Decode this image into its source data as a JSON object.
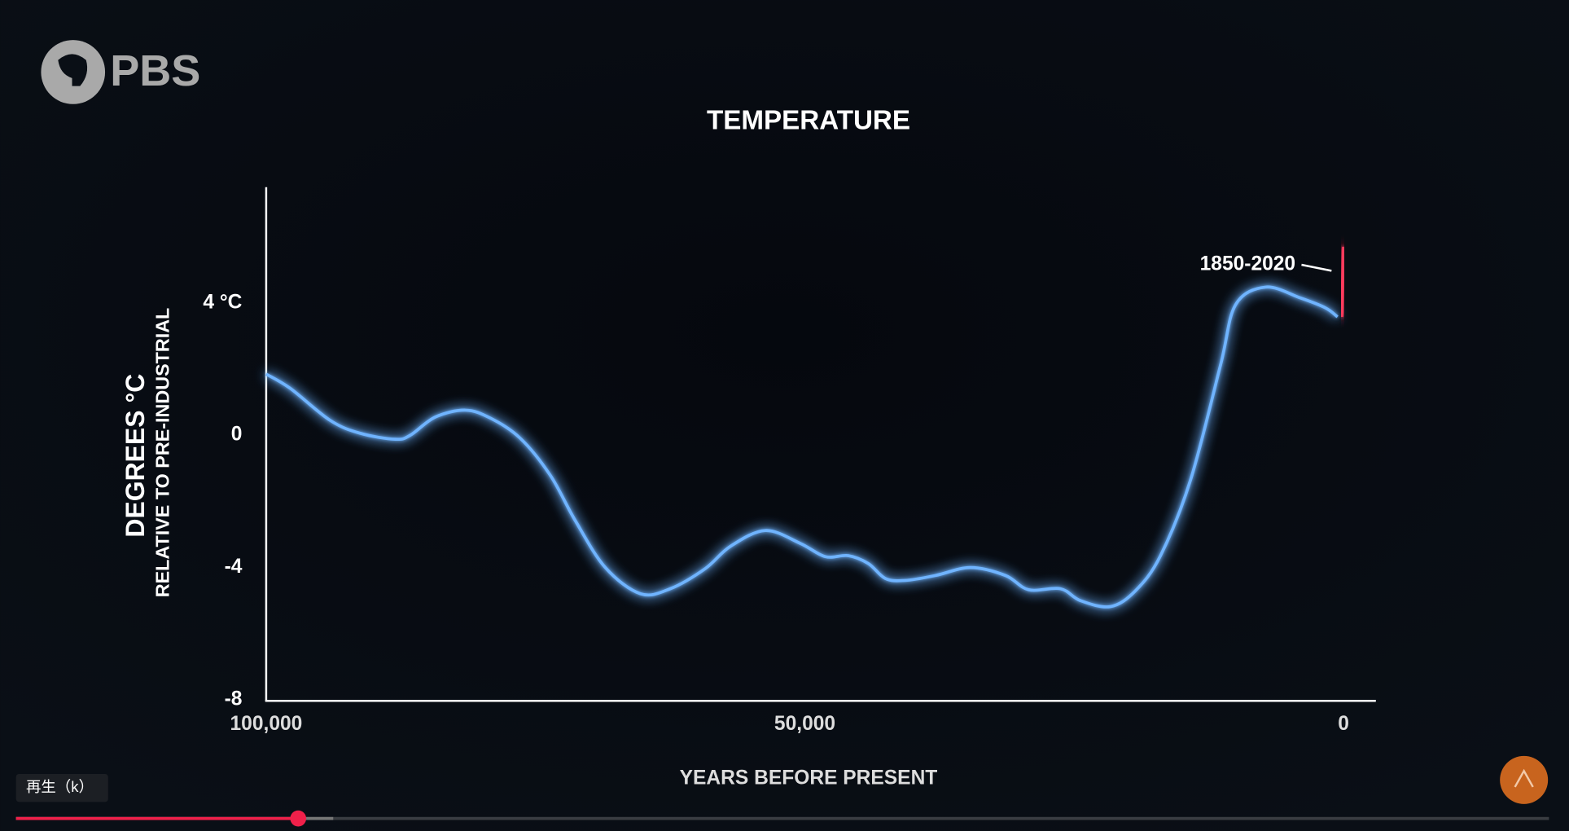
{
  "logo": "PBS",
  "player": {
    "tooltip": "再生（k）"
  },
  "chart_data": {
    "type": "line",
    "title": "TEMPERATURE",
    "ylabel": "DEGREES °C",
    "ysublabel": "RELATIVE TO PRE-INDUSTRIAL",
    "xlabel": "YEARS BEFORE PRESENT",
    "xlim": [
      100000,
      -3000
    ],
    "ylim": [
      -8,
      7.5
    ],
    "xticks": [
      {
        "value": 100000,
        "label": "100,000"
      },
      {
        "value": 50000,
        "label": "50,000"
      },
      0
    ],
    "yticks": [
      -8,
      -4,
      0,
      {
        "value": 4,
        "label": "4 °C"
      }
    ],
    "grid": false,
    "series": [
      {
        "color": "#6fb4ff",
        "x": [
          100000,
          97770,
          94060,
          91270,
          88020,
          86630,
          84310,
          81520,
          79200,
          76420,
          73630,
          71310,
          68520,
          65270,
          62490,
          59240,
          56920,
          53670,
          50420,
          48100,
          45960,
          44100,
          42530,
          40670,
          37880,
          34630,
          31380,
          29240,
          26280,
          24420,
          21630,
          19310,
          16990,
          14210,
          11420,
          10030,
          7240,
          3990,
          1670,
          560
        ],
        "values": [
          1.85,
          1.42,
          0.45,
          0.06,
          -0.12,
          0,
          0.55,
          0.76,
          0.52,
          -0.09,
          -1.21,
          -2.58,
          -4.0,
          -4.79,
          -4.64,
          -4.03,
          -3.36,
          -2.88,
          -3.27,
          -3.67,
          -3.64,
          -3.88,
          -4.33,
          -4.39,
          -4.24,
          -4.0,
          -4.24,
          -4.67,
          -4.64,
          -5.0,
          -5.18,
          -4.7,
          -3.64,
          -1.36,
          2.12,
          3.94,
          4.48,
          4.15,
          3.85,
          3.58
        ]
      },
      {
        "name": "1850-2020",
        "color": "#ff3b5c",
        "x": [
          170,
          0
        ],
        "values": [
          3.58,
          5.7
        ]
      }
    ]
  }
}
